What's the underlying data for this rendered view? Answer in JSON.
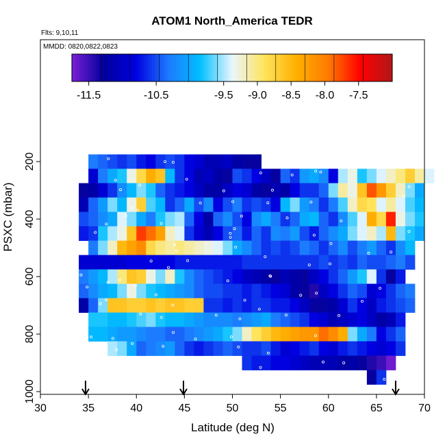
{
  "chart_data": {
    "type": "heatmap",
    "title": "ATOM1 North_America TEDR",
    "notes": [
      "Flts: 9,10,11",
      "MMDD: 0820,0822,0823"
    ],
    "xlabel": "Latitude (deg N)",
    "ylabel": "PSXC (mbar)",
    "xlim": [
      30,
      70
    ],
    "ylim": [
      1000,
      0
    ],
    "y_reversed": true,
    "x_ticks": [
      30,
      35,
      40,
      45,
      50,
      55,
      60,
      65,
      70
    ],
    "y_ticks": [
      200,
      400,
      600,
      800,
      1000
    ],
    "colorbar": {
      "range": [
        -11.75,
        -7.0
      ],
      "ticks": [
        -11.5,
        -10.5,
        -9.5,
        -9.0,
        -8.5,
        -8.0,
        -7.5
      ],
      "tick_labels": [
        "-11.5",
        "-10.5",
        "-9.5",
        "-9.0",
        "-8.5",
        "-8.0",
        "-7.5"
      ],
      "colors": [
        "#7a1fd6",
        "#00009c",
        "#0000e0",
        "#1e78ff",
        "#00bfff",
        "#e9f6ff",
        "#ffe45c",
        "#ffb000",
        "#ff7b00",
        "#ff0000",
        "#b01818"
      ]
    },
    "cell_width_deg": 1.0,
    "cell_height_mbar": 50,
    "flight_marker_latitudes": [
      34.7,
      44.9,
      67.0
    ],
    "rows": [
      {
        "p": 200,
        "lat0": 35,
        "values": [
          -10.3,
          -10.4,
          -10.5,
          -10.6,
          -10.5,
          -10.7,
          -10.8,
          -10.6,
          -10.5,
          -10.6,
          -10.8,
          -10.9,
          -11.1,
          -11.1,
          -11.0,
          -11.2,
          -11.3,
          -11.3
        ]
      },
      {
        "p": 250,
        "lat0": 35,
        "values": [
          -10.9,
          -10.3,
          -10.0,
          -9.8,
          -9.3,
          -8.8,
          -8.4,
          -8.6,
          -9.9,
          -10.6,
          -10.8,
          -11.1,
          -11.0,
          -11.2,
          -11.3,
          -10.5,
          -10.6,
          -10.8,
          -11.0,
          -11.3,
          -10.4,
          -10.6,
          -10.1,
          -10.0,
          -10.2,
          -10.8,
          -9.5,
          -9.3,
          -9.8,
          -9.6,
          -9.4,
          -9.2,
          -9.0,
          -8.7,
          -9.1,
          -9.4
        ]
      },
      {
        "p": 300,
        "lat0": 34,
        "values": [
          -11.3,
          -11.2,
          -10.9,
          -10.6,
          -10.2,
          -9.9,
          -9.6,
          -9.8,
          -10.4,
          -10.6,
          -10.7,
          -10.8,
          -11.0,
          -11.2,
          -11.2,
          -11.0,
          -10.8,
          -10.9,
          -11.2,
          -11.3,
          -11.1,
          -11.2,
          -10.8,
          -10.6,
          -10.6,
          -10.4,
          -9.6,
          -9.1,
          -9.3,
          -8.6,
          -7.8,
          -8.2,
          -8.7,
          -9.2,
          -9.6,
          -10.0
        ]
      },
      {
        "p": 350,
        "lat0": 34,
        "values": [
          -11.1,
          -10.4,
          -10.1,
          -9.6,
          -9.9,
          -9.3,
          -8.7,
          -9.7,
          -9.9,
          -10.6,
          -10.4,
          -10.0,
          -10.5,
          -10.2,
          -10.8,
          -10.5,
          -10.3,
          -10.6,
          -10.5,
          -10.6,
          -10.8,
          -9.9,
          -9.6,
          -10.1,
          -10.3,
          -10.6,
          -10.3,
          -9.7,
          -9.2,
          -8.8,
          -8.9,
          -9.4,
          -9.1,
          -9.4,
          -9.7,
          -9.9
        ]
      },
      {
        "p": 400,
        "lat0": 34,
        "values": [
          -10.5,
          -10.4,
          -10.2,
          -10.0,
          -9.4,
          -9.6,
          -10.0,
          -10.3,
          -9.8,
          -9.6,
          -9.5,
          -10.4,
          -10.8,
          -11.2,
          -10.4,
          -10.2,
          -10.5,
          -10.8,
          -10.2,
          -10.0,
          -10.3,
          -10.6,
          -10.4,
          -10.0,
          -9.9,
          -10.4,
          -10.6,
          -10.2,
          -9.7,
          -9.4,
          -8.4,
          -8.8,
          -7.6,
          -9.3,
          -9.6,
          -9.8
        ]
      },
      {
        "p": 450,
        "lat0": 34,
        "values": [
          -10.7,
          -10.6,
          -9.8,
          -9.5,
          -9.3,
          -8.6,
          -7.7,
          -7.9,
          -8.3,
          -9.2,
          -9.4,
          -10.6,
          -10.9,
          -11.1,
          -10.8,
          -10.5,
          -10.4,
          -10.7,
          -10.4,
          -10.6,
          -10.2,
          -10.3,
          -10.1,
          -10.5,
          -10.7,
          -10.4,
          -10.2,
          -10.0,
          -9.6,
          -9.4,
          -9.2,
          -9.5,
          -8.5,
          -9.6,
          -9.8,
          -10.0
        ]
      },
      {
        "p": 500,
        "lat0": 35,
        "values": [
          -10.3,
          -9.6,
          -9.2,
          -8.5,
          -8.3,
          -8.1,
          -8.8,
          -9.0,
          -9.1,
          -9.0,
          -9.1,
          -9.2,
          -9.3,
          -9.4,
          -9.6,
          -10.0,
          -10.2,
          -10.4,
          -10.6,
          -10.5,
          -10.6,
          -10.5,
          -10.3,
          -10.4,
          -10.6,
          -10.4,
          -10.2,
          -10.5,
          -10.3,
          -10.1,
          -10.4,
          -10.6,
          -10.2,
          -9.9
        ]
      },
      {
        "p": 550,
        "lat0": 34,
        "values": [
          -10.9,
          -10.9,
          -10.9,
          -10.9,
          -10.9,
          -10.8,
          -10.8,
          -10.8,
          -10.8,
          -10.8,
          -10.7,
          -10.7,
          -10.7,
          -10.7,
          -10.7,
          -10.7,
          -10.7,
          -10.6,
          -10.6,
          -10.6,
          -10.6,
          -10.6,
          -10.6,
          -10.6,
          -10.6,
          -10.5,
          -10.6,
          -10.5,
          -10.6,
          -10.4,
          -10.5,
          -10.5,
          -10.4,
          -10.3,
          -10.5
        ]
      },
      {
        "p": 600,
        "lat0": 34,
        "values": [
          -10.3,
          -10.1,
          -9.9,
          -9.5,
          -9.0,
          -8.6,
          -8.7,
          -9.3,
          -9.6,
          -9.2,
          -9.8,
          -10.2,
          -10.4,
          -10.5,
          -10.6,
          -10.7,
          -10.8,
          -11.0,
          -11.1,
          -11.2,
          -11.3,
          -11.1,
          -11.2,
          -11.3,
          -11.0,
          -10.8,
          -10.6,
          -10.4,
          -10.1,
          -9.8,
          -9.4,
          -10.6,
          -11.3,
          -10.7
        ]
      },
      {
        "p": 650,
        "lat0": 34,
        "values": [
          -10.4,
          -10.2,
          -10.0,
          -9.9,
          -9.6,
          -9.3,
          -9.6,
          -9.8,
          -9.9,
          -10.0,
          -10.1,
          -10.2,
          -10.4,
          -10.5,
          -10.5,
          -10.6,
          -10.6,
          -10.7,
          -10.6,
          -10.7,
          -10.8,
          -10.9,
          -11.2,
          -11.3,
          -11.4,
          -11.0,
          -10.8,
          -10.6,
          -10.4,
          -10.5,
          -10.9,
          -10.8,
          -10.6,
          -10.4,
          -10.3
        ]
      },
      {
        "p": 700,
        "lat0": 34,
        "values": [
          -11.2,
          -10.4,
          -9.6,
          -8.6,
          -8.6,
          -8.7,
          -8.7,
          -8.6,
          -8.7,
          -8.6,
          -8.6,
          -8.7,
          -8.7,
          -10.6,
          -10.6,
          -10.7,
          -10.6,
          -10.7,
          -10.6,
          -10.6,
          -10.7,
          -10.7,
          -10.8,
          -11.0,
          -11.3,
          -11.3,
          -11.2,
          -10.9,
          -10.6,
          -10.8,
          -11.0,
          -10.7,
          -10.6,
          -10.5,
          -10.4
        ]
      },
      {
        "p": 750,
        "lat0": 35,
        "values": [
          -9.8,
          -9.8,
          -9.9,
          -9.9,
          -9.8,
          -9.7,
          -9.6,
          -9.8,
          -9.9,
          -9.9,
          -10.0,
          -10.1,
          -10.2,
          -10.2,
          -10.2,
          -10.3,
          -10.2,
          -10.1,
          -10.0,
          -10.3,
          -10.4,
          -10.5,
          -10.6,
          -10.8,
          -10.9,
          -11.1,
          -11.0,
          -10.9,
          -10.8,
          -11.0,
          -11.2,
          -11.1,
          -10.7
        ]
      },
      {
        "p": 800,
        "lat0": 35,
        "values": [
          -9.9,
          -9.9,
          -10.0,
          -10.1,
          -10.1,
          -10.2,
          -10.3,
          -10.3,
          -10.4,
          -10.4,
          -10.3,
          -10.2,
          -10.1,
          -10.0,
          -9.8,
          -9.6,
          -9.2,
          -8.9,
          -8.7,
          -8.5,
          -8.4,
          -8.3,
          -8.2,
          -8.2,
          -7.9,
          -8.1,
          -8.4,
          -9.6,
          -10.0,
          -10.3,
          -10.8,
          -10.6,
          -10.4
        ]
      },
      {
        "p": 850,
        "lat0": 37,
        "values": [
          -9.5,
          -9.6,
          -10.0,
          -10.4,
          -10.3,
          -10.2,
          -10.1,
          -10.4,
          -10.6,
          -10.7,
          -10.6,
          -10.5,
          -10.4,
          -10.5,
          -10.6,
          -10.6,
          -10.5,
          -10.7,
          -10.9,
          -10.8,
          -10.7,
          -10.6,
          -10.8,
          -10.9,
          -10.7,
          -10.6,
          -10.7,
          -10.8,
          -10.9,
          -10.8,
          -10.6
        ]
      },
      {
        "p": 900,
        "lat0": 51,
        "values": [
          -10.6,
          -10.7,
          -10.7,
          -10.8,
          -10.8,
          -10.9,
          -11.0,
          -11.1,
          -11.1,
          -11.1,
          -11.2,
          -11.2,
          -11.3,
          -11.4,
          -11.5,
          -11.7
        ]
      },
      {
        "p": 950,
        "lat0": 64,
        "values": [
          -11.3,
          -10.6
        ]
      }
    ]
  }
}
